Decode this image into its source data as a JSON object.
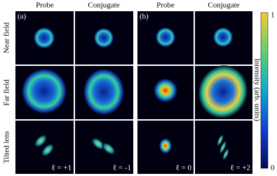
{
  "panels": [
    {
      "label": "(a)",
      "columns": [
        "Probe",
        "Conjugate"
      ],
      "mode_labels": [
        "ℓ = +1",
        "ℓ = -1"
      ]
    },
    {
      "label": "(b)",
      "columns": [
        "Probe",
        "Conjugate"
      ],
      "mode_labels": [
        "ℓ = 0",
        "ℓ = +2"
      ]
    }
  ],
  "rows": [
    "Near field",
    "Far field",
    "Tilted lens"
  ],
  "colorbar": {
    "label": "Intensity (arb. units)",
    "max": 1,
    "min": 0
  }
}
